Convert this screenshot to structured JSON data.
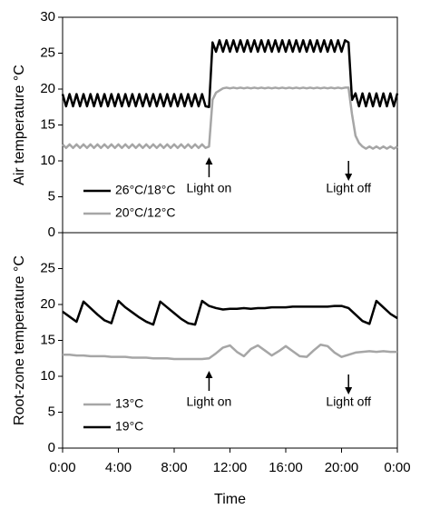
{
  "chart_data": [
    {
      "type": "line",
      "ylabel": "Air temperature °C",
      "xlim": [
        0,
        24
      ],
      "ylim": [
        0,
        30
      ],
      "yticks": [
        0,
        5,
        10,
        15,
        20,
        25,
        30
      ],
      "x": [
        0,
        0.25,
        0.5,
        0.75,
        1,
        1.25,
        1.5,
        1.75,
        2,
        2.25,
        2.5,
        2.75,
        3,
        3.25,
        3.5,
        3.75,
        4,
        4.25,
        4.5,
        4.75,
        5,
        5.25,
        5.5,
        5.75,
        6,
        6.25,
        6.5,
        6.75,
        7,
        7.25,
        7.5,
        7.75,
        8,
        8.25,
        8.5,
        8.75,
        9,
        9.25,
        9.5,
        9.75,
        10,
        10.25,
        10.5,
        10.75,
        11,
        11.25,
        11.5,
        11.75,
        12,
        12.25,
        12.5,
        12.75,
        13,
        13.25,
        13.5,
        13.75,
        14,
        14.25,
        14.5,
        14.75,
        15,
        15.25,
        15.5,
        15.75,
        16,
        16.25,
        16.5,
        16.75,
        17,
        17.25,
        17.5,
        17.75,
        18,
        18.25,
        18.5,
        18.75,
        19,
        19.25,
        19.5,
        19.75,
        20,
        20.25,
        20.5,
        20.75,
        21,
        21.25,
        21.5,
        21.75,
        22,
        22.25,
        22.5,
        22.75,
        23,
        23.25,
        23.5,
        23.75,
        24
      ],
      "series": [
        {
          "name": "26°C/18°C",
          "color": "#000000",
          "values": [
            19.3,
            17.6,
            19.3,
            17.6,
            19.3,
            17.6,
            19.3,
            17.6,
            19.3,
            17.6,
            19.3,
            17.6,
            19.3,
            17.6,
            19.3,
            17.6,
            19.3,
            17.6,
            19.3,
            17.6,
            19.3,
            17.6,
            19.3,
            17.6,
            19.3,
            17.6,
            19.3,
            17.6,
            19.3,
            17.6,
            19.3,
            17.6,
            19.3,
            17.6,
            19.3,
            17.6,
            19.3,
            17.6,
            19.3,
            17.6,
            19.3,
            17.6,
            17.5,
            26.5,
            25.2,
            26.8,
            25.2,
            26.8,
            25.2,
            26.8,
            25.2,
            26.8,
            25.2,
            26.8,
            25.2,
            26.8,
            25.2,
            26.8,
            25.2,
            26.8,
            25.2,
            26.8,
            25.2,
            26.8,
            25.2,
            26.8,
            25.2,
            26.8,
            25.2,
            26.8,
            25.2,
            26.8,
            25.2,
            26.8,
            25.2,
            26.8,
            25.2,
            26.8,
            25.2,
            26.8,
            25.2,
            26.8,
            26.5,
            18.5,
            19.4,
            17.6,
            19.4,
            17.6,
            19.4,
            17.6,
            19.4,
            17.6,
            19.4,
            17.6,
            19.4,
            17.6,
            19.4
          ]
        },
        {
          "name": "20°C/12°C",
          "color": "#a6a6a6",
          "values": [
            12.3,
            11.8,
            12.3,
            11.8,
            12.3,
            11.8,
            12.3,
            11.8,
            12.3,
            11.8,
            12.3,
            11.8,
            12.3,
            11.8,
            12.3,
            11.8,
            12.3,
            11.8,
            12.3,
            11.8,
            12.3,
            11.8,
            12.3,
            11.8,
            12.3,
            11.8,
            12.3,
            11.8,
            12.3,
            11.8,
            12.3,
            11.8,
            12.3,
            11.8,
            12.3,
            11.8,
            12.3,
            11.8,
            12.3,
            11.8,
            12.3,
            11.8,
            12.0,
            18.5,
            19.5,
            19.8,
            20.1,
            20.2,
            20.1,
            20.2,
            20.1,
            20.2,
            20.1,
            20.2,
            20.1,
            20.2,
            20.1,
            20.2,
            20.1,
            20.2,
            20.1,
            20.2,
            20.1,
            20.2,
            20.1,
            20.2,
            20.1,
            20.2,
            20.1,
            20.2,
            20.1,
            20.2,
            20.1,
            20.2,
            20.1,
            20.2,
            20.1,
            20.2,
            20.1,
            20.2,
            20.1,
            20.2,
            20.2,
            16.5,
            13.5,
            12.5,
            12.0,
            11.7,
            12.0,
            11.7,
            12.0,
            11.7,
            12.0,
            11.7,
            12.0,
            11.7,
            12.0
          ]
        }
      ],
      "annotations": [
        {
          "text": "Light on",
          "x": 10.5
        },
        {
          "text": "Light off",
          "x": 20.5
        }
      ]
    },
    {
      "type": "line",
      "ylabel": "Root-zone temperature °C",
      "xlabel": "Time",
      "xlim": [
        0,
        24
      ],
      "ylim": [
        0,
        30
      ],
      "yticks": [
        0,
        5,
        10,
        15,
        20,
        25
      ],
      "xticks": [
        {
          "value": 0,
          "label": "0:00"
        },
        {
          "value": 4,
          "label": "4:00"
        },
        {
          "value": 8,
          "label": "8:00"
        },
        {
          "value": 12,
          "label": "12:00"
        },
        {
          "value": 16,
          "label": "16:00"
        },
        {
          "value": 20,
          "label": "20:00"
        },
        {
          "value": 24,
          "label": "0:00"
        }
      ],
      "x": [
        0,
        0.5,
        1,
        1.5,
        2,
        2.5,
        3,
        3.5,
        4,
        4.5,
        5,
        5.5,
        6,
        6.5,
        7,
        7.5,
        8,
        8.5,
        9,
        9.5,
        10,
        10.5,
        11,
        11.5,
        12,
        12.5,
        13,
        13.5,
        14,
        14.5,
        15,
        15.5,
        16,
        16.5,
        17,
        17.5,
        18,
        18.5,
        19,
        19.5,
        20,
        20.5,
        21,
        21.5,
        22,
        22.5,
        23,
        23.5,
        24
      ],
      "series": [
        {
          "name": "13°C",
          "color": "#a6a6a6",
          "values": [
            13.0,
            13.0,
            12.9,
            12.9,
            12.8,
            12.8,
            12.8,
            12.7,
            12.7,
            12.7,
            12.6,
            12.6,
            12.6,
            12.5,
            12.5,
            12.5,
            12.4,
            12.4,
            12.4,
            12.4,
            12.4,
            12.5,
            13.2,
            14.0,
            14.3,
            13.4,
            12.8,
            13.8,
            14.3,
            13.6,
            12.9,
            13.5,
            14.2,
            13.5,
            12.8,
            12.7,
            13.6,
            14.4,
            14.2,
            13.3,
            12.7,
            13.0,
            13.3,
            13.4,
            13.5,
            13.4,
            13.5,
            13.4,
            13.4
          ]
        },
        {
          "name": "19°C",
          "color": "#000000",
          "values": [
            19.0,
            18.3,
            17.6,
            20.4,
            19.5,
            18.6,
            17.8,
            17.4,
            20.5,
            19.6,
            18.9,
            18.2,
            17.6,
            17.2,
            20.4,
            19.6,
            18.8,
            18.0,
            17.4,
            17.2,
            20.5,
            19.8,
            19.5,
            19.3,
            19.4,
            19.4,
            19.5,
            19.4,
            19.5,
            19.5,
            19.6,
            19.6,
            19.6,
            19.7,
            19.7,
            19.7,
            19.7,
            19.7,
            19.7,
            19.8,
            19.8,
            19.5,
            18.6,
            17.7,
            17.3,
            20.5,
            19.6,
            18.7,
            18.1
          ]
        }
      ],
      "annotations": [
        {
          "text": "Light on",
          "x": 10.5
        },
        {
          "text": "Light off",
          "x": 20.5
        }
      ]
    }
  ]
}
